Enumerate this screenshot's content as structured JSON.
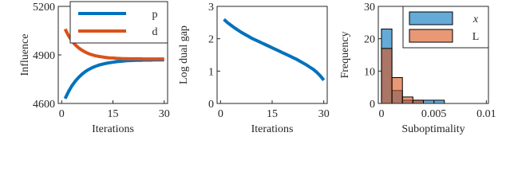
{
  "chart_data": [
    {
      "type": "line",
      "xlabel": "Iterations",
      "ylabel": "Influence",
      "x": [
        1,
        2,
        3,
        4,
        5,
        6,
        7,
        8,
        9,
        10,
        11,
        12,
        13,
        14,
        15,
        16,
        17,
        18,
        19,
        20,
        21,
        22,
        23,
        24,
        25,
        26,
        27,
        28,
        29,
        30
      ],
      "series": [
        {
          "name": "p",
          "color": "#0072bd",
          "values": [
            4630,
            4673,
            4709,
            4738,
            4762,
            4782,
            4798,
            4811,
            4822,
            4830,
            4838,
            4843,
            4848,
            4852,
            4855,
            4858,
            4860,
            4862,
            4864,
            4865,
            4866,
            4867,
            4867,
            4868,
            4868,
            4868,
            4869,
            4869,
            4869,
            4869
          ]
        },
        {
          "name": "d",
          "color": "#d95319",
          "values": [
            5060,
            5019,
            4987,
            4962,
            4943,
            4928,
            4916,
            4907,
            4900,
            4894,
            4890,
            4887,
            4884,
            4882,
            4881,
            4879,
            4878,
            4877,
            4877,
            4876,
            4876,
            4876,
            4876,
            4875,
            4875,
            4875,
            4875,
            4875,
            4875,
            4875
          ]
        }
      ],
      "xlim": [
        -1,
        31
      ],
      "ylim": [
        4600,
        5200
      ],
      "xticks": [
        0,
        15,
        30
      ],
      "yticks": [
        4600,
        4900,
        5200
      ],
      "legend": "upper right"
    },
    {
      "type": "line",
      "xlabel": "Iterations",
      "ylabel": "Log dual gap",
      "x": [
        1,
        2,
        3,
        4,
        5,
        6,
        7,
        8,
        9,
        10,
        11,
        12,
        13,
        14,
        15,
        16,
        17,
        18,
        19,
        20,
        21,
        22,
        23,
        24,
        25,
        26,
        27,
        28,
        29,
        30
      ],
      "series": [
        {
          "color": "#0072bd",
          "values": [
            2.6,
            2.5,
            2.42,
            2.34,
            2.27,
            2.2,
            2.14,
            2.08,
            2.02,
            1.97,
            1.92,
            1.87,
            1.82,
            1.77,
            1.72,
            1.67,
            1.62,
            1.57,
            1.52,
            1.47,
            1.42,
            1.37,
            1.31,
            1.25,
            1.19,
            1.12,
            1.05,
            0.96,
            0.85,
            0.72
          ]
        }
      ],
      "xlim": [
        -1,
        31
      ],
      "ylim": [
        0,
        3
      ],
      "xticks": [
        0,
        15,
        30
      ],
      "yticks": [
        0,
        1,
        2,
        3
      ]
    },
    {
      "type": "histogram",
      "xlabel": "Suboptimality",
      "ylabel": "Frequency",
      "bins": [
        0,
        0.001,
        0.002,
        0.003,
        0.004,
        0.005,
        0.006
      ],
      "series": [
        {
          "name": "x",
          "color": "#0072bd",
          "values": [
            23,
            4,
            1,
            1,
            1,
            1
          ]
        },
        {
          "name": "L",
          "color": "#d95319",
          "values": [
            17,
            8,
            2,
            1,
            0,
            0
          ]
        }
      ],
      "xlim": [
        -0.0003,
        0.0102
      ],
      "ylim": [
        0,
        30
      ],
      "xticks": [
        0,
        0.005,
        0.01
      ],
      "yticks": [
        0,
        10,
        20,
        30
      ],
      "legend": "upper right"
    }
  ]
}
